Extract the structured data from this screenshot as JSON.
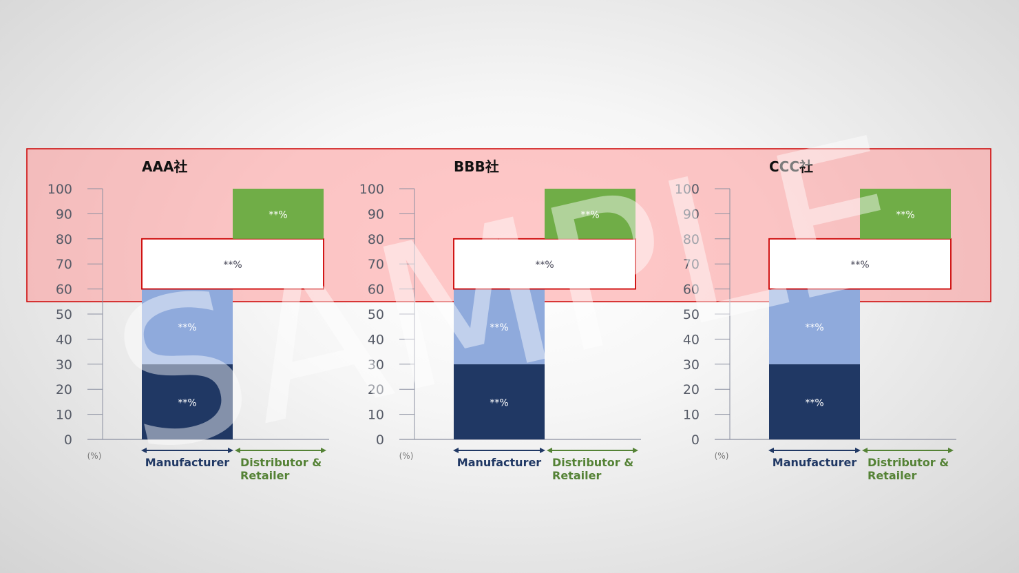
{
  "colors": {
    "manufacturer_dark": "#203864",
    "manufacturer_light": "#8faadc",
    "distributor": "#70ad47",
    "highlight_border": "#cc0000",
    "highlight_fill": "#ff9a9a",
    "axis": "#8a8fa0"
  },
  "watermark": "SAMPLE",
  "chart_data": [
    {
      "type": "bar",
      "title": "AAA社",
      "unit_label": "(%)",
      "ylim": [
        0,
        100
      ],
      "yticks": [
        "0",
        "10",
        "20",
        "30",
        "40",
        "50",
        "60",
        "70",
        "80",
        "90",
        "100"
      ],
      "categories": [
        "Manufacturer",
        "Distributor & Retailer"
      ],
      "category_lines": [
        [
          "Manufacturer"
        ],
        [
          "Distributor &",
          "Retailer"
        ]
      ],
      "segments": [
        {
          "name": "manufacturer-base",
          "from": 0,
          "to": 30,
          "label": "**%",
          "span": "manufacturer",
          "color": "manufacturer_dark"
        },
        {
          "name": "manufacturer-upper",
          "from": 30,
          "to": 60,
          "label": "**%",
          "span": "manufacturer",
          "color": "manufacturer_light"
        },
        {
          "name": "shared",
          "from": 60,
          "to": 80,
          "label": "**%",
          "span": "both",
          "color": "white"
        },
        {
          "name": "distributor",
          "from": 80,
          "to": 100,
          "label": "**%",
          "span": "distributor",
          "color": "distributor"
        }
      ]
    },
    {
      "type": "bar",
      "title": "BBB社",
      "unit_label": "(%)",
      "ylim": [
        0,
        100
      ],
      "yticks": [
        "0",
        "10",
        "20",
        "30",
        "40",
        "50",
        "60",
        "70",
        "80",
        "90",
        "100"
      ],
      "categories": [
        "Manufacturer",
        "Distributor & Retailer"
      ],
      "category_lines": [
        [
          "Manufacturer"
        ],
        [
          "Distributor &",
          "Retailer"
        ]
      ],
      "segments": [
        {
          "name": "manufacturer-base",
          "from": 0,
          "to": 30,
          "label": "**%",
          "span": "manufacturer",
          "color": "manufacturer_dark"
        },
        {
          "name": "manufacturer-upper",
          "from": 30,
          "to": 60,
          "label": "**%",
          "span": "manufacturer",
          "color": "manufacturer_light"
        },
        {
          "name": "shared",
          "from": 60,
          "to": 80,
          "label": "**%",
          "span": "both",
          "color": "white"
        },
        {
          "name": "distributor",
          "from": 80,
          "to": 100,
          "label": "**%",
          "span": "distributor",
          "color": "distributor"
        }
      ]
    },
    {
      "type": "bar",
      "title": "CCC社",
      "unit_label": "(%)",
      "ylim": [
        0,
        100
      ],
      "yticks": [
        "0",
        "10",
        "20",
        "30",
        "40",
        "50",
        "60",
        "70",
        "80",
        "90",
        "100"
      ],
      "categories": [
        "Manufacturer",
        "Distributor & Retailer"
      ],
      "category_lines": [
        [
          "Manufacturer"
        ],
        [
          "Distributor &",
          "Retailer"
        ]
      ],
      "segments": [
        {
          "name": "manufacturer-base",
          "from": 0,
          "to": 30,
          "label": "**%",
          "span": "manufacturer",
          "color": "manufacturer_dark"
        },
        {
          "name": "manufacturer-upper",
          "from": 30,
          "to": 60,
          "label": "**%",
          "span": "manufacturer",
          "color": "manufacturer_light"
        },
        {
          "name": "shared",
          "from": 60,
          "to": 80,
          "label": "**%",
          "span": "both",
          "color": "white"
        },
        {
          "name": "distributor",
          "from": 80,
          "to": 100,
          "label": "**%",
          "span": "distributor",
          "color": "distributor"
        }
      ]
    }
  ]
}
